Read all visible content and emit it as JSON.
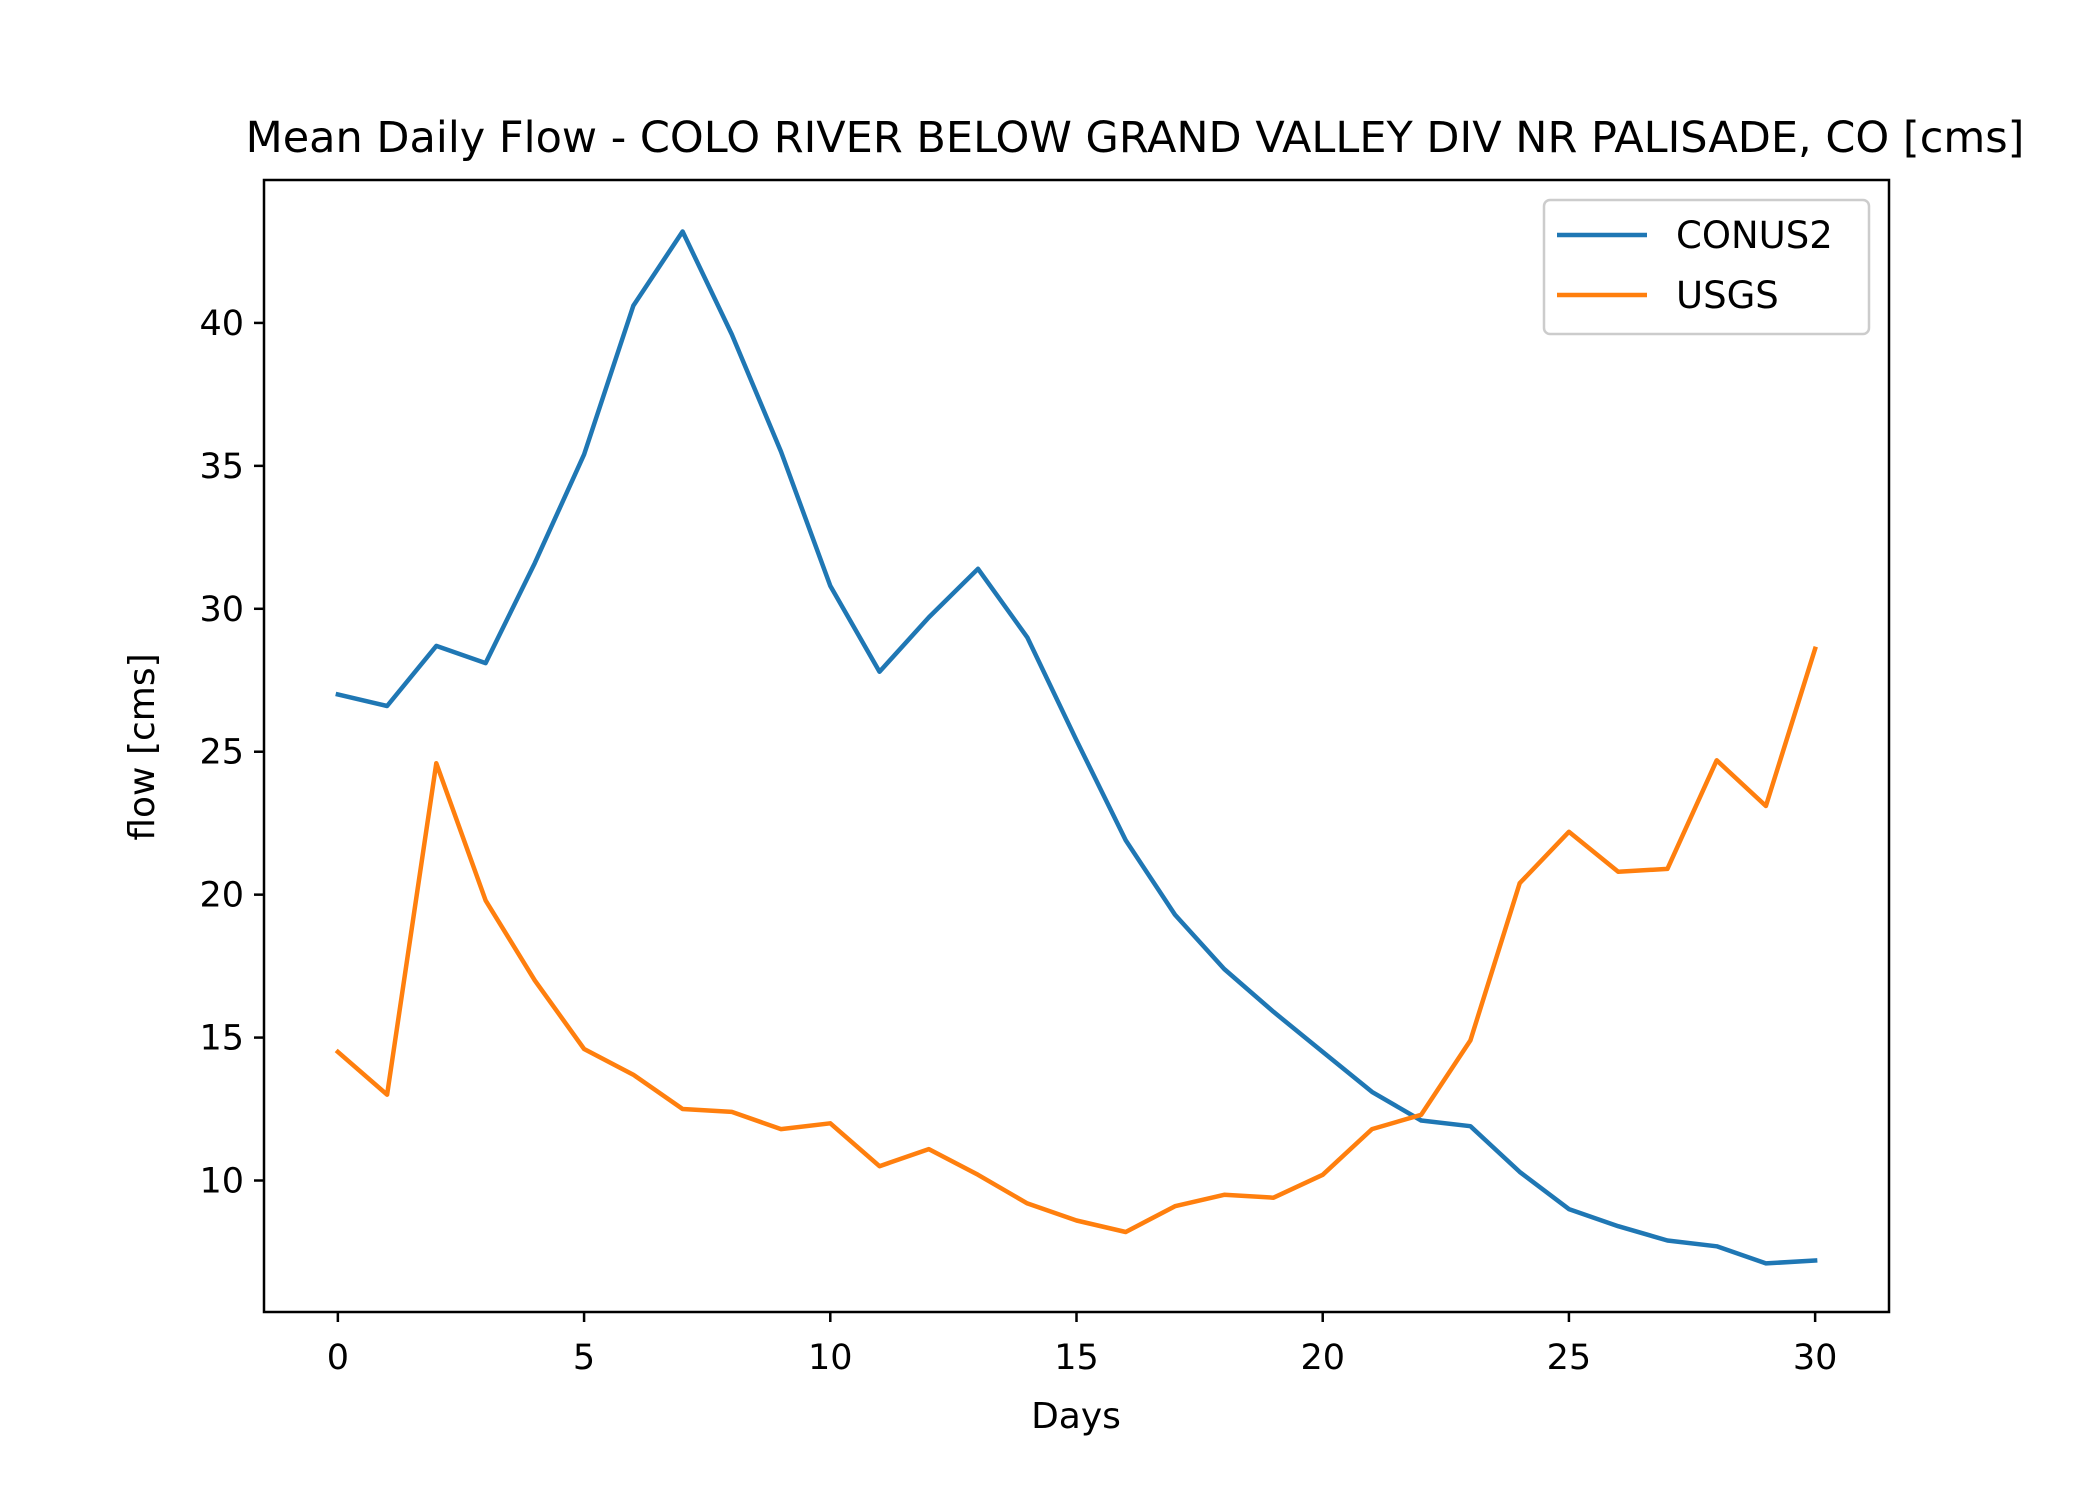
{
  "chart_data": {
    "type": "line",
    "title": "Mean Daily Flow - COLO RIVER BELOW GRAND VALLEY DIV NR PALISADE, CO [cms]",
    "xlabel": "Days",
    "ylabel": "flow [cms]",
    "xlim": [
      -1.5,
      31.5
    ],
    "ylim": [
      5.4,
      45.0
    ],
    "xticks": [
      0,
      5,
      10,
      15,
      20,
      25,
      30
    ],
    "yticks": [
      10,
      15,
      20,
      25,
      30,
      35,
      40
    ],
    "grid": false,
    "legend_position": "upper right",
    "x": [
      0,
      1,
      2,
      3,
      4,
      5,
      6,
      7,
      8,
      9,
      10,
      11,
      12,
      13,
      14,
      15,
      16,
      17,
      18,
      19,
      20,
      21,
      22,
      23,
      24,
      25,
      26,
      27,
      28,
      29,
      30
    ],
    "series": [
      {
        "name": "CONUS2",
        "color": "#1f77b4",
        "values": [
          27.0,
          26.6,
          28.7,
          28.1,
          31.6,
          35.4,
          40.6,
          43.2,
          39.6,
          35.5,
          30.8,
          27.8,
          29.7,
          31.4,
          29.0,
          25.4,
          21.9,
          19.3,
          17.4,
          15.9,
          14.5,
          13.1,
          12.1,
          11.9,
          10.3,
          9.0,
          8.4,
          7.9,
          7.7,
          7.1,
          7.2
        ]
      },
      {
        "name": "USGS",
        "color": "#ff7f0e",
        "values": [
          14.5,
          13.0,
          24.6,
          19.8,
          17.0,
          14.6,
          13.7,
          12.5,
          12.4,
          11.8,
          12.0,
          10.5,
          11.1,
          10.2,
          9.2,
          8.6,
          8.2,
          9.1,
          9.5,
          9.4,
          10.2,
          11.8,
          12.3,
          14.9,
          20.4,
          22.2,
          20.8,
          20.9,
          24.7,
          23.1,
          28.6
        ]
      }
    ]
  }
}
